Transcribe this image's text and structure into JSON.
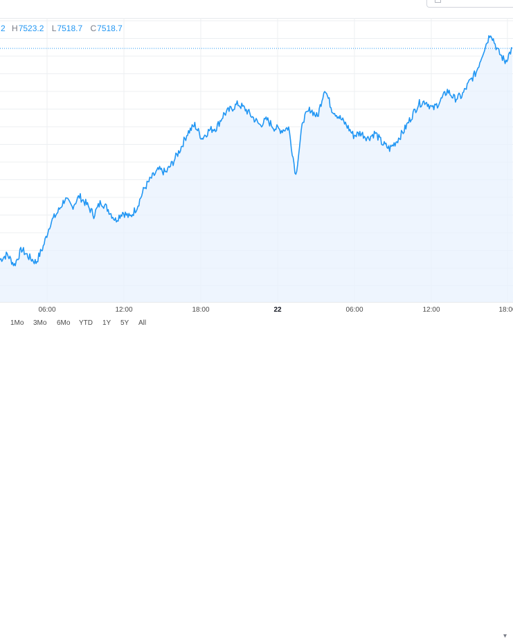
{
  "legend": {
    "open_value_cut": "2",
    "high_key": "H",
    "high_value": "7523.2",
    "low_key": "L",
    "low_value": "7518.7",
    "close_key": "C",
    "close_value": "7518.7"
  },
  "time_axis": {
    "ticks": [
      "06:00",
      "12:00",
      "18:00",
      "22",
      "06:00",
      "12:00",
      "18:00"
    ]
  },
  "range_buttons": [
    "1Mo",
    "3Mo",
    "6Mo",
    "YTD",
    "1Y",
    "5Y",
    "All"
  ],
  "colors": {
    "line": "#2196f3",
    "area_fill": "#e8f2fd",
    "grid": "#eceff2",
    "price_line": "#2196f3"
  },
  "icons": {
    "scroll": "chevron-icon"
  },
  "chart_data": {
    "type": "area",
    "x_labels": [
      "06:00",
      "12:00",
      "18:00",
      "22",
      "06:00",
      "12:00",
      "18:00"
    ],
    "series": [
      {
        "values": [
          7442,
          7446,
          7438,
          7450,
          7444,
          7440,
          7452,
          7470,
          7478,
          7488,
          7482,
          7490,
          7484,
          7476,
          7486,
          7480,
          7472,
          7478,
          7474,
          7482,
          7496,
          7504,
          7510,
          7508,
          7516,
          7526,
          7538,
          7544,
          7534,
          7540,
          7542,
          7552,
          7556,
          7560,
          7556,
          7550,
          7544,
          7548,
          7542,
          7540,
          7542,
          7506,
          7548,
          7556,
          7550,
          7572,
          7556,
          7550,
          7544,
          7536,
          7538,
          7534,
          7538,
          7530,
          7526,
          7532,
          7540,
          7550,
          7560,
          7562,
          7556,
          7562,
          7570,
          7564,
          7566,
          7576,
          7584,
          7600,
          7614,
          7600,
          7592,
          7602
        ]
      }
    ],
    "ylim": [
      7410,
      7625
    ],
    "last_price_marker": 7602,
    "grid": true
  }
}
